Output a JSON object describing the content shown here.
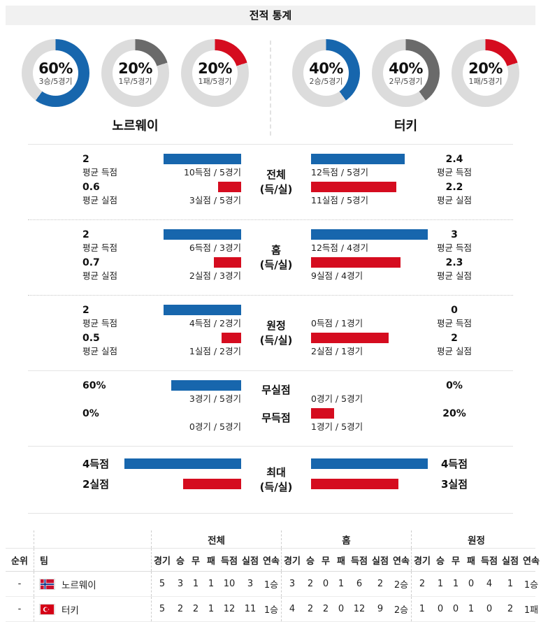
{
  "title": "전적 통계",
  "colors": {
    "blue": "#1766ad",
    "gray": "#6a6a6a",
    "red": "#d50c1f",
    "track": "#dcdcdc"
  },
  "teams": {
    "home": {
      "name": "노르웨이",
      "donuts": [
        {
          "pct": "60%",
          "sub": "3승/5경기",
          "color": "blue",
          "value": 60
        },
        {
          "pct": "20%",
          "sub": "1무/5경기",
          "color": "gray",
          "value": 20
        },
        {
          "pct": "20%",
          "sub": "1패/5경기",
          "color": "red",
          "value": 20
        }
      ]
    },
    "away": {
      "name": "터키",
      "donuts": [
        {
          "pct": "40%",
          "sub": "2승/5경기",
          "color": "blue",
          "value": 40
        },
        {
          "pct": "40%",
          "sub": "2무/5경기",
          "color": "gray",
          "value": 40
        },
        {
          "pct": "20%",
          "sub": "1패/5경기",
          "color": "red",
          "value": 20
        }
      ]
    }
  },
  "sections": [
    {
      "type": "stat",
      "border": "solid",
      "center": [
        "전체",
        "(득/실)"
      ],
      "rows": [
        {
          "left_value": "2",
          "left_sub": "평균 득점",
          "left_bar": {
            "value": 2,
            "max": 3,
            "color": "blue"
          },
          "left_label": "10득점 / 5경기",
          "right_bar": {
            "value": 2.4,
            "max": 3,
            "color": "blue"
          },
          "right_label": "12득점 / 5경기",
          "right_value": "2.4",
          "right_sub": "평균 득점"
        },
        {
          "left_value": "0.6",
          "left_sub": "평균 실점",
          "left_bar": {
            "value": 0.6,
            "max": 3,
            "color": "red"
          },
          "left_label": "3실점 / 5경기",
          "right_bar": {
            "value": 2.2,
            "max": 3,
            "color": "red"
          },
          "right_label": "11실점 / 5경기",
          "right_value": "2.2",
          "right_sub": "평균 실점"
        }
      ]
    },
    {
      "type": "stat",
      "border": "dotted",
      "center": [
        "홈",
        "(득/실)"
      ],
      "rows": [
        {
          "left_value": "2",
          "left_sub": "평균 득점",
          "left_bar": {
            "value": 2,
            "max": 3,
            "color": "blue"
          },
          "left_label": "6득점 / 3경기",
          "right_bar": {
            "value": 3,
            "max": 3,
            "color": "blue"
          },
          "right_label": "12득점 / 4경기",
          "right_value": "3",
          "right_sub": "평균 득점"
        },
        {
          "left_value": "0.7",
          "left_sub": "평균 실점",
          "left_bar": {
            "value": 0.7,
            "max": 3,
            "color": "red"
          },
          "left_label": "2실점 / 3경기",
          "right_bar": {
            "value": 2.3,
            "max": 3,
            "color": "red"
          },
          "right_label": "9실점 / 4경기",
          "right_value": "2.3",
          "right_sub": "평균 실점"
        }
      ]
    },
    {
      "type": "stat",
      "border": "dotted",
      "center": [
        "원정",
        "(득/실)"
      ],
      "rows": [
        {
          "left_value": "2",
          "left_sub": "평균 득점",
          "left_bar": {
            "value": 2,
            "max": 3,
            "color": "blue"
          },
          "left_label": "4득점 / 2경기",
          "right_bar": {
            "value": 0,
            "max": 3,
            "color": "blue"
          },
          "right_label": "0득점 / 1경기",
          "right_value": "0",
          "right_sub": "평균 득점"
        },
        {
          "left_value": "0.5",
          "left_sub": "평균 실점",
          "left_bar": {
            "value": 0.5,
            "max": 3,
            "color": "red"
          },
          "left_label": "1실점 / 2경기",
          "right_bar": {
            "value": 2,
            "max": 3,
            "color": "red"
          },
          "right_label": "2실점 / 1경기",
          "right_value": "2",
          "right_sub": "평균 실점"
        }
      ]
    },
    {
      "type": "pct",
      "border": "solid",
      "rows": [
        {
          "center": "무실점",
          "left_value": "60%",
          "left_bar": {
            "value": 60,
            "max": 100,
            "color": "blue"
          },
          "left_label": "3경기 / 5경기",
          "right_bar": {
            "value": 0,
            "max": 100,
            "color": "blue"
          },
          "right_label": "0경기 / 5경기",
          "right_value": "0%"
        },
        {
          "center": "무득점",
          "left_value": "0%",
          "left_bar": {
            "value": 0,
            "max": 100,
            "color": "red"
          },
          "left_label": "0경기 / 5경기",
          "right_bar": {
            "value": 20,
            "max": 100,
            "color": "red"
          },
          "right_label": "1경기 / 5경기",
          "right_value": "20%"
        }
      ]
    },
    {
      "type": "max",
      "border": "solid",
      "center": [
        "최대",
        "(득/실)"
      ],
      "rows": [
        {
          "left_value": "4득점",
          "left_bar": {
            "value": 4,
            "max": 4,
            "color": "blue"
          },
          "right_bar": {
            "value": 4,
            "max": 4,
            "color": "blue"
          },
          "right_value": "4득점"
        },
        {
          "left_value": "2실점",
          "left_bar": {
            "value": 2,
            "max": 4,
            "color": "red"
          },
          "right_bar": {
            "value": 3,
            "max": 4,
            "color": "red"
          },
          "right_value": "3실점"
        }
      ]
    }
  ],
  "table": {
    "rank_header": "순위",
    "team_header": "팀",
    "group_headers": [
      "전체",
      "홈",
      "원정"
    ],
    "stat_headers": [
      "경기",
      "승",
      "무",
      "패",
      "득점",
      "실점",
      "연속"
    ],
    "rows": [
      {
        "rank": "-",
        "team": "노르웨이",
        "flag": "norway",
        "overall": [
          "5",
          "3",
          "1",
          "1",
          "10",
          "3",
          "1승"
        ],
        "home": [
          "3",
          "2",
          "0",
          "1",
          "6",
          "2",
          "2승"
        ],
        "away": [
          "2",
          "1",
          "1",
          "0",
          "4",
          "1",
          "1승"
        ]
      },
      {
        "rank": "-",
        "team": "터키",
        "flag": "turkey",
        "overall": [
          "5",
          "2",
          "2",
          "1",
          "12",
          "11",
          "1승"
        ],
        "home": [
          "4",
          "2",
          "2",
          "0",
          "12",
          "9",
          "2승"
        ],
        "away": [
          "1",
          "0",
          "0",
          "1",
          "0",
          "2",
          "1패"
        ]
      }
    ]
  },
  "chart_data": [
    {
      "type": "pie",
      "title": "노르웨이 승/무/패 (최근 5경기)",
      "labels": [
        "승",
        "무",
        "패"
      ],
      "values": [
        60,
        20,
        20
      ],
      "notes": [
        "3승/5경기",
        "1무/5경기",
        "1패/5경기"
      ],
      "colors": [
        "#1766ad",
        "#6a6a6a",
        "#d50c1f"
      ]
    },
    {
      "type": "pie",
      "title": "터키 승/무/패 (최근 5경기)",
      "labels": [
        "승",
        "무",
        "패"
      ],
      "values": [
        40,
        40,
        20
      ],
      "notes": [
        "2승/5경기",
        "2무/5경기",
        "1패/5경기"
      ],
      "colors": [
        "#1766ad",
        "#6a6a6a",
        "#d50c1f"
      ]
    },
    {
      "type": "bar",
      "title": "전체 (득/실) 평균",
      "categories": [
        "평균 득점",
        "평균 실점"
      ],
      "series": [
        {
          "name": "노르웨이",
          "values": [
            2,
            0.6
          ]
        },
        {
          "name": "터키",
          "values": [
            2.4,
            2.2
          ]
        }
      ],
      "notes": [
        "노르웨이 10득점/5경기, 3실점/5경기",
        "터키 12득점/5경기, 11실점/5경기"
      ]
    },
    {
      "type": "bar",
      "title": "홈 (득/실) 평균",
      "categories": [
        "평균 득점",
        "평균 실점"
      ],
      "series": [
        {
          "name": "노르웨이",
          "values": [
            2,
            0.7
          ]
        },
        {
          "name": "터키",
          "values": [
            3,
            2.3
          ]
        }
      ],
      "notes": [
        "노르웨이 6득점/3경기, 2실점/3경기",
        "터키 12득점/4경기, 9실점/4경기"
      ]
    },
    {
      "type": "bar",
      "title": "원정 (득/실) 평균",
      "categories": [
        "평균 득점",
        "평균 실점"
      ],
      "series": [
        {
          "name": "노르웨이",
          "values": [
            2,
            0.5
          ]
        },
        {
          "name": "터키",
          "values": [
            0,
            2
          ]
        }
      ],
      "notes": [
        "노르웨이 4득점/2경기, 1실점/2경기",
        "터키 0득점/1경기, 2실점/1경기"
      ]
    },
    {
      "type": "bar",
      "title": "무실점 / 무득점 비율",
      "unit": "%",
      "categories": [
        "무실점",
        "무득점"
      ],
      "series": [
        {
          "name": "노르웨이",
          "values": [
            60,
            0
          ]
        },
        {
          "name": "터키",
          "values": [
            0,
            20
          ]
        }
      ],
      "notes": [
        "노르웨이 무실점 3경기/5경기, 무득점 0경기/5경기",
        "터키 무실점 0경기/5경기, 무득점 1경기/5경기"
      ]
    },
    {
      "type": "bar",
      "title": "최대 (득/실)",
      "categories": [
        "최대 득점",
        "최대 실점"
      ],
      "series": [
        {
          "name": "노르웨이",
          "values": [
            4,
            2
          ]
        },
        {
          "name": "터키",
          "values": [
            4,
            3
          ]
        }
      ]
    }
  ]
}
